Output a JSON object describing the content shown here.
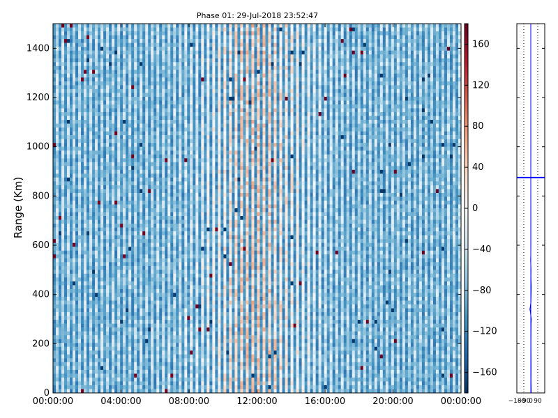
{
  "chart_data": [
    {
      "type": "heatmap",
      "title": "Phase 01: 29-Jul-2018 23:52:47",
      "xlabel": "",
      "ylabel": "Range (Km)",
      "x_tick_labels": [
        "00:00:00",
        "04:00:00",
        "08:00:00",
        "12:00:00",
        "16:00:00",
        "20:00:00",
        "00:00:00"
      ],
      "y_ticks": [
        0,
        200,
        400,
        600,
        800,
        1000,
        1200,
        1400
      ],
      "ylim": [
        0,
        1500
      ],
      "x_range_hours": [
        0,
        24
      ],
      "colorbar": {
        "colormap": "RdBu_r",
        "range": [
          -180,
          180
        ],
        "ticks": [
          -160,
          -120,
          -80,
          -40,
          0,
          40,
          80,
          120,
          160
        ]
      },
      "grid": false
    },
    {
      "type": "line",
      "title": "",
      "x_tick_labels": [
        "-180",
        "-90",
        "0",
        "90"
      ],
      "xlim": [
        -180,
        180
      ],
      "ylim": [
        0,
        1500
      ],
      "y_ticks": [
        0,
        200,
        400,
        600,
        800,
        1000,
        1200,
        1400
      ],
      "series_color": "#0000ff",
      "marker_range_km": 875,
      "profile": [
        [
          0,
          5
        ],
        [
          50,
          3
        ],
        [
          100,
          4
        ],
        [
          200,
          2
        ],
        [
          280,
          4
        ],
        [
          300,
          6
        ],
        [
          320,
          -2
        ],
        [
          330,
          -5
        ],
        [
          340,
          -12
        ],
        [
          350,
          -6
        ],
        [
          370,
          2
        ],
        [
          400,
          4
        ],
        [
          430,
          5
        ],
        [
          470,
          2
        ],
        [
          500,
          3
        ],
        [
          540,
          -2
        ],
        [
          560,
          0
        ],
        [
          600,
          1
        ],
        [
          700,
          1
        ],
        [
          875,
          0
        ],
        [
          1000,
          1
        ],
        [
          1200,
          0
        ],
        [
          1500,
          0
        ]
      ],
      "grid": true
    }
  ]
}
